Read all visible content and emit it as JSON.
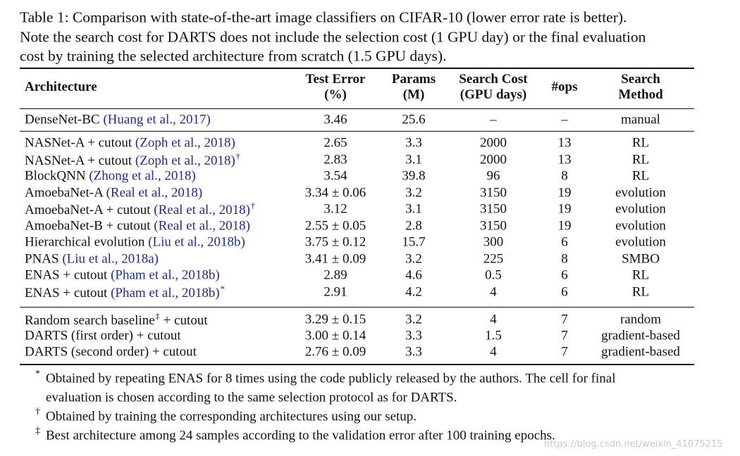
{
  "caption": {
    "lines": [
      "Table 1: Comparison with state-of-the-art image classifiers on CIFAR-10 (lower error rate is better).",
      "Note the search cost for DARTS does not include the selection cost (1 GPU day) or the final evaluation",
      "cost by training the selected architecture from scratch (1.5 GPU days)."
    ]
  },
  "table": {
    "headers": [
      {
        "lines": [
          "Architecture"
        ]
      },
      {
        "lines": [
          "Test Error",
          "(%)"
        ]
      },
      {
        "lines": [
          "Params",
          "(M)"
        ]
      },
      {
        "lines": [
          "Search Cost",
          "(GPU days)"
        ]
      },
      {
        "lines": [
          "#ops"
        ]
      },
      {
        "lines": [
          "Search",
          "Method"
        ]
      }
    ],
    "groups": [
      [
        {
          "architecture": {
            "name": "DenseNet-BC",
            "citation": "(Huang et al., 2017)"
          },
          "cells": [
            "3.46",
            "25.6",
            "–",
            "–",
            "manual"
          ]
        }
      ],
      [
        {
          "architecture": {
            "name": "NASNet-A + cutout",
            "citation": "(Zoph et al., 2018)"
          },
          "cells": [
            "2.65",
            "3.3",
            "2000",
            "13",
            "RL"
          ]
        },
        {
          "architecture": {
            "name": "NASNet-A + cutout",
            "citation": "(Zoph et al., 2018)",
            "mark": "†"
          },
          "cells": [
            "2.83",
            "3.1",
            "2000",
            "13",
            "RL"
          ]
        },
        {
          "architecture": {
            "name": "BlockQNN",
            "citation": "(Zhong et al., 2018)"
          },
          "cells": [
            "3.54",
            "39.8",
            "96",
            "8",
            "RL"
          ]
        },
        {
          "architecture": {
            "name": "AmoebaNet-A",
            "citation": "(Real et al., 2018)"
          },
          "cells": [
            "3.34 ± 0.06",
            "3.2",
            "3150",
            "19",
            "evolution"
          ]
        },
        {
          "architecture": {
            "name": "AmoebaNet-A + cutout",
            "citation": "(Real et al., 2018)",
            "mark": "†"
          },
          "cells": [
            "3.12",
            "3.1",
            "3150",
            "19",
            "evolution"
          ]
        },
        {
          "architecture": {
            "name": "AmoebaNet-B + cutout",
            "citation": "(Real et al., 2018)"
          },
          "cells": [
            "2.55 ± 0.05",
            "2.8",
            "3150",
            "19",
            "evolution"
          ]
        },
        {
          "architecture": {
            "name": "Hierarchical evolution",
            "citation": "(Liu et al., 2018b)"
          },
          "cells": [
            "3.75 ± 0.12",
            "15.7",
            "300",
            "6",
            "evolution"
          ]
        },
        {
          "architecture": {
            "name": "PNAS",
            "citation": "(Liu et al., 2018a)"
          },
          "cells": [
            "3.41 ± 0.09",
            "3.2",
            "225",
            "8",
            "SMBO"
          ]
        },
        {
          "architecture": {
            "name": "ENAS + cutout",
            "citation": "(Pham et al., 2018b)"
          },
          "cells": [
            "2.89",
            "4.6",
            "0.5",
            "6",
            "RL"
          ]
        },
        {
          "architecture": {
            "name": "ENAS + cutout",
            "citation": "(Pham et al., 2018b)",
            "mark": "*"
          },
          "cells": [
            "2.91",
            "4.2",
            "4",
            "6",
            "RL"
          ]
        }
      ],
      [
        {
          "architecture": {
            "name": "Random search baseline",
            "mark": "‡",
            "suffix": "+ cutout"
          },
          "cells": [
            "3.29 ± 0.15",
            "3.2",
            "4",
            "7",
            "random"
          ]
        },
        {
          "architecture": {
            "name": "DARTS (first order) + cutout"
          },
          "cells": [
            "3.00 ± 0.14",
            "3.3",
            "1.5",
            "7",
            "gradient-based"
          ]
        },
        {
          "architecture": {
            "name": "DARTS (second order) + cutout"
          },
          "cells": [
            "2.76 ± 0.09",
            "3.3",
            "4",
            "7",
            "gradient-based"
          ]
        }
      ]
    ]
  },
  "footnotes": [
    {
      "mark": "*",
      "lines": [
        "Obtained by repeating ENAS for 8 times using the code publicly released by the authors. The cell for final",
        "evaluation is chosen according to the same selection protocol as for DARTS."
      ]
    },
    {
      "mark": "†",
      "lines": [
        "Obtained by training the corresponding architectures using our setup."
      ]
    },
    {
      "mark": "‡",
      "lines": [
        "Best architecture among 24 samples according to the validation error after 100 training epochs."
      ]
    }
  ],
  "watermark": "https://blog.csdn.net/weixin_41075215"
}
